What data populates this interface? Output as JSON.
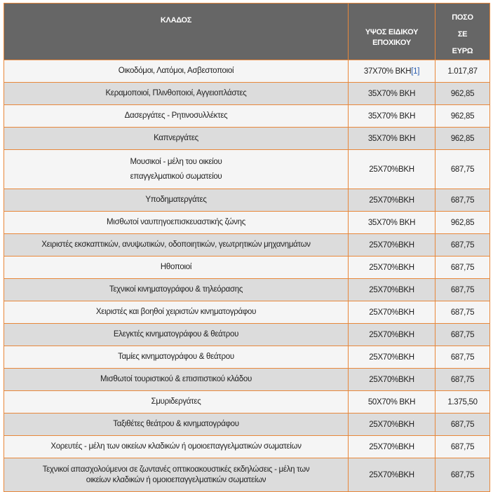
{
  "header": {
    "kladnos": "ΚΛΑΔΟΣ",
    "ypsos_line1": "ΥΨΟΣ ΕΙΔΙΚΟΥ",
    "ypsos_line2": "ΕΠΟΧΙΚΟΥ",
    "poso_line1": "ΠΟΣΟ",
    "poso_line2": "ΣΕ",
    "poso_line3": "ΕΥΡΩ"
  },
  "colors": {
    "header_bg": "#666666",
    "border": "#e8873a",
    "row_alt": "#dcdcdc"
  },
  "rows": [
    {
      "klados": "Οικοδόμοι, Λατόμοι, Ασβεστοποιοί",
      "ypsos": "37Χ70% ΒΚΗ",
      "footnote": "[1]",
      "poso": "1.017,87"
    },
    {
      "klados": "Κεραμοποιοί, Πλινθοποιοί, Αγγειοπλάστες",
      "ypsos": "35Χ70% ΒΚΗ",
      "poso": "962,85"
    },
    {
      "klados": "Δασεργάτες - Ρητινοσυλλέκτες",
      "ypsos": "35Χ70% ΒΚΗ",
      "poso": "962,85"
    },
    {
      "klados": "Καπνεργάτες",
      "ypsos": "35Χ70% ΒΚΗ",
      "poso": "962,85"
    },
    {
      "klados": "Μουσικοί - μέλη του οικείου",
      "klados2": "επαγγελματικού σωματείου",
      "ypsos": "25Χ70%ΒΚΗ",
      "poso": "687,75"
    },
    {
      "klados": "Υποδηματεργάτες",
      "ypsos": "25Χ70%ΒΚΗ",
      "poso": "687,75"
    },
    {
      "klados": "Μισθωτοί ναυπηγοεπισκευαστικής ζώνης",
      "ypsos": "35Χ70% ΒΚΗ",
      "poso": "962,85"
    },
    {
      "klados": "Χειριστές εκσκαπτικών, ανυψωτικών, οδοποιητικών, γεωτρητικών μηχανημάτων",
      "ypsos": "25Χ70%ΒΚΗ",
      "poso": "687,75"
    },
    {
      "klados": "Ηθοποιοί",
      "ypsos": "25Χ70%ΒΚΗ",
      "poso": "687,75"
    },
    {
      "klados": "Τεχνικοί κινηματογράφου & τηλεόρασης",
      "ypsos": "25Χ70%ΒΚΗ",
      "poso": "687,75"
    },
    {
      "klados": "Χειριστές και βοηθοί χειριστών κινηματογράφου",
      "ypsos": "25Χ70%ΒΚΗ",
      "poso": "687,75"
    },
    {
      "klados": "Ελεγκτές κινηματογράφου & θεάτρου",
      "ypsos": "25Χ70%ΒΚΗ",
      "poso": "687,75"
    },
    {
      "klados": "Ταμίες κινηματογράφου & θεάτρου",
      "ypsos": "25Χ70%ΒΚΗ",
      "poso": "687,75"
    },
    {
      "klados": "Μισθωτοί τουριστικού & επισιτιστικού κλάδου",
      "ypsos": "25Χ70%ΒΚΗ",
      "poso": "687,75"
    },
    {
      "klados": "Σμυριδεργάτες",
      "ypsos": "50Χ70% ΒΚΗ",
      "poso": "1.375,50"
    },
    {
      "klados": "Ταξιθέτες θεάτρου & κινηματογράφου",
      "ypsos": "25Χ70%ΒΚΗ",
      "poso": "687,75"
    },
    {
      "klados": "Χορευτές - μέλη των οικείων κλαδικών ή ομοιοεπαγγελματικών σωματείων",
      "ypsos": "25Χ70%ΒΚΗ",
      "poso": "687,75"
    },
    {
      "klados": "Τεχνικοί απασχολούμενοι σε ζωντανές οπτικοακουστικές εκδηλώσεις - μέλη των",
      "klados2": "οικείων κλαδικών ή ομοιοεπαγγελματικών σωματείων",
      "ypsos": "25Χ70%ΒΚΗ",
      "poso": "687,75"
    }
  ]
}
